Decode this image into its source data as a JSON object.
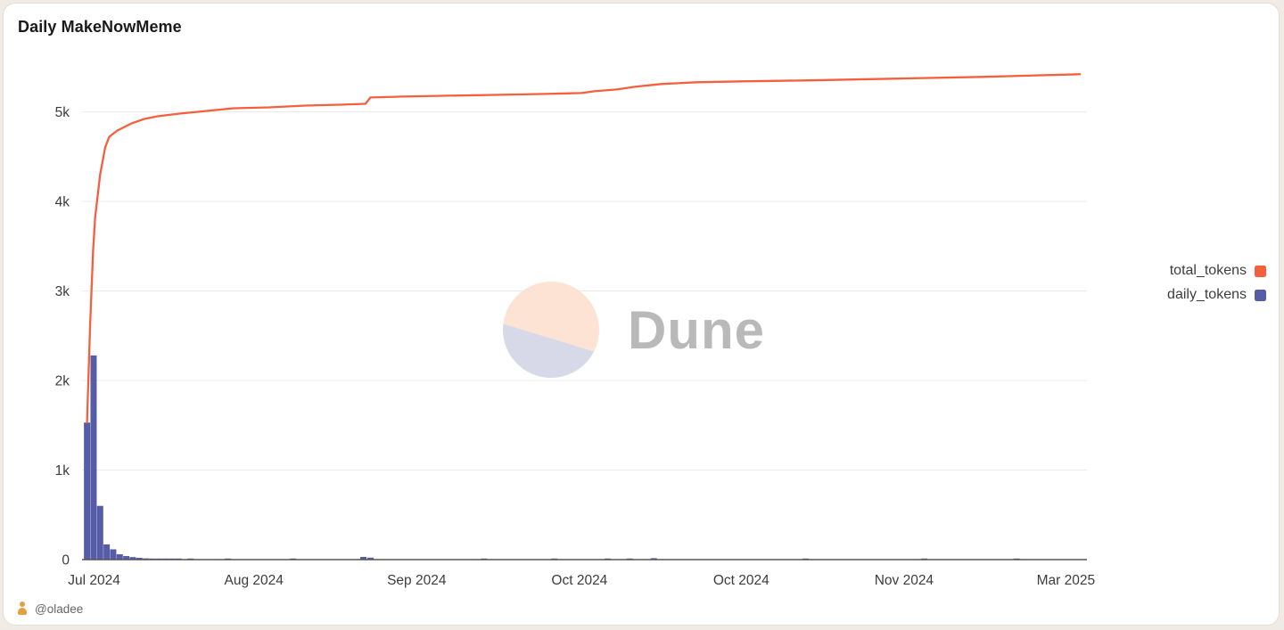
{
  "header": {
    "title": "Daily MakeNowMeme"
  },
  "watermark": {
    "text": "Dune"
  },
  "footer": {
    "handle": "@oladee"
  },
  "legend": {
    "items": [
      {
        "label": "total_tokens",
        "color": "#F4603D"
      },
      {
        "label": "daily_tokens",
        "color": "#565CA5"
      }
    ]
  },
  "colors": {
    "line": "#F4603D",
    "bar": "#565CA5",
    "grid": "#ebebeb",
    "axis": "#555555",
    "watermark_text": "#b9b9b9"
  },
  "chart_data": {
    "type": "line+bar",
    "title": "Daily MakeNowMeme",
    "xlabel": "",
    "ylabel": "",
    "ylim": [
      0,
      5600
    ],
    "grid": "horizontal",
    "legend_position": "right",
    "y_ticks": [
      {
        "label": "0",
        "value": 0
      },
      {
        "label": "1k",
        "value": 1000
      },
      {
        "label": "2k",
        "value": 2000
      },
      {
        "label": "3k",
        "value": 3000
      },
      {
        "label": "4k",
        "value": 4000
      },
      {
        "label": "5k",
        "value": 5000
      }
    ],
    "x_ticks": [
      {
        "label": "Jul 2024",
        "pos": 0.012
      },
      {
        "label": "Aug 2024",
        "pos": 0.171
      },
      {
        "label": "Sep 2024",
        "pos": 0.333
      },
      {
        "label": "Oct 2024",
        "pos": 0.495
      },
      {
        "label": "Oct 2024",
        "pos": 0.656
      },
      {
        "label": "Nov 2024",
        "pos": 0.818
      },
      {
        "label": "Mar 2025",
        "pos": 0.979
      }
    ],
    "series": [
      {
        "name": "total_tokens",
        "type": "line",
        "color": "#F4603D",
        "points": [
          [
            0.005,
            1530
          ],
          [
            0.008,
            2600
          ],
          [
            0.011,
            3450
          ],
          [
            0.013,
            3820
          ],
          [
            0.018,
            4300
          ],
          [
            0.023,
            4600
          ],
          [
            0.027,
            4720
          ],
          [
            0.035,
            4790
          ],
          [
            0.049,
            4870
          ],
          [
            0.062,
            4920
          ],
          [
            0.075,
            4950
          ],
          [
            0.097,
            4980
          ],
          [
            0.124,
            5010
          ],
          [
            0.151,
            5040
          ],
          [
            0.186,
            5050
          ],
          [
            0.222,
            5070
          ],
          [
            0.257,
            5080
          ],
          [
            0.282,
            5090
          ],
          [
            0.287,
            5160
          ],
          [
            0.319,
            5170
          ],
          [
            0.364,
            5180
          ],
          [
            0.417,
            5190
          ],
          [
            0.461,
            5200
          ],
          [
            0.497,
            5210
          ],
          [
            0.51,
            5230
          ],
          [
            0.532,
            5250
          ],
          [
            0.55,
            5280
          ],
          [
            0.576,
            5310
          ],
          [
            0.612,
            5330
          ],
          [
            0.656,
            5340
          ],
          [
            0.718,
            5350
          ],
          [
            0.807,
            5370
          ],
          [
            0.895,
            5390
          ],
          [
            0.993,
            5420
          ]
        ]
      },
      {
        "name": "daily_tokens",
        "type": "bar",
        "color": "#565CA5",
        "points": [
          [
            0.005,
            1530
          ],
          [
            0.0115,
            2280
          ],
          [
            0.018,
            600
          ],
          [
            0.0245,
            170
          ],
          [
            0.031,
            115
          ],
          [
            0.0375,
            60
          ],
          [
            0.044,
            40
          ],
          [
            0.0505,
            28
          ],
          [
            0.057,
            20
          ],
          [
            0.0635,
            14
          ],
          [
            0.07,
            10
          ],
          [
            0.0765,
            8
          ],
          [
            0.083,
            6
          ],
          [
            0.0895,
            5
          ],
          [
            0.096,
            4
          ],
          [
            0.108,
            12
          ],
          [
            0.145,
            6
          ],
          [
            0.21,
            8
          ],
          [
            0.28,
            30
          ],
          [
            0.287,
            22
          ],
          [
            0.4,
            5
          ],
          [
            0.47,
            8
          ],
          [
            0.523,
            10
          ],
          [
            0.545,
            6
          ],
          [
            0.569,
            16
          ],
          [
            0.72,
            5
          ],
          [
            0.838,
            8
          ],
          [
            0.93,
            4
          ]
        ]
      }
    ]
  }
}
